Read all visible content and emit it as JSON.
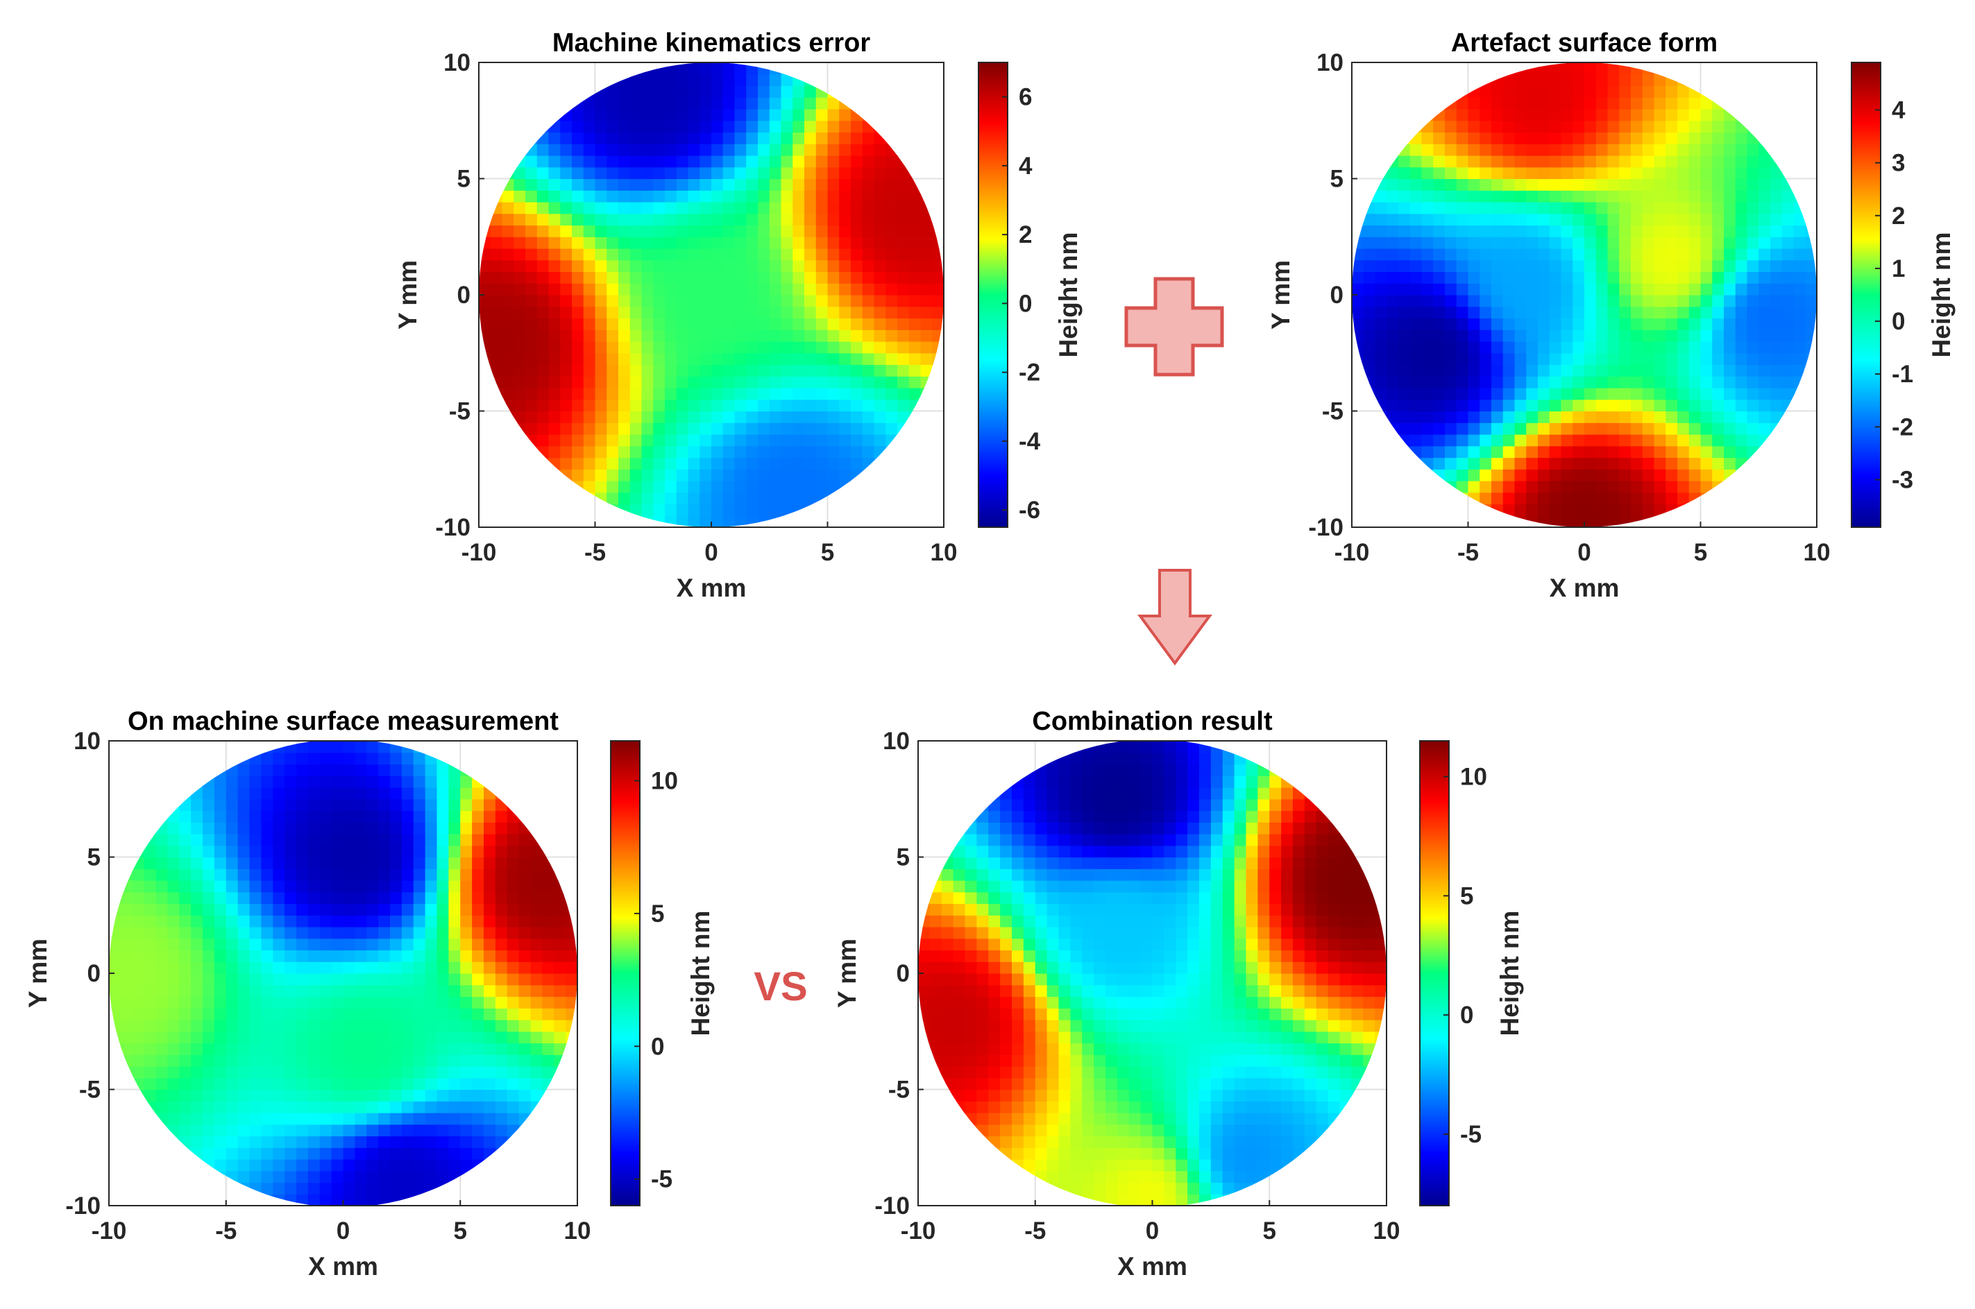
{
  "figure": {
    "plus_symbol": "+",
    "arrow_symbol": "down-arrow",
    "vs_label": "VS"
  },
  "colors": {
    "operator_fill": "#f4b6b3",
    "operator_stroke": "#d9534f",
    "vs_text": "#d9534f",
    "axis": "#262626",
    "grid": "#e0e0e0"
  },
  "chart_data": [
    {
      "id": "kinematics",
      "type": "heatmap",
      "title": "Machine kinematics error",
      "xlabel": "X mm",
      "ylabel": "Y mm",
      "xlim": [
        -10,
        10
      ],
      "ylim": [
        -10,
        10
      ],
      "xticks": [
        -10,
        -5,
        0,
        5,
        10
      ],
      "yticks": [
        -10,
        -5,
        0,
        5,
        10
      ],
      "colorbar": {
        "label": "Height nm",
        "range": [
          -6.5,
          7
        ],
        "ticks": [
          -6,
          -4,
          -2,
          0,
          2,
          4,
          6
        ]
      },
      "domain": "circle radius 10 mm",
      "features": [
        {
          "x": -9,
          "y": -2,
          "value": 6.5
        },
        {
          "x": 8.5,
          "y": 3.5,
          "value": 6.0
        },
        {
          "x": -2.5,
          "y": 8.5,
          "value": -6.0
        },
        {
          "x": 3.5,
          "y": -8.5,
          "value": -3.5
        },
        {
          "x": 0,
          "y": 0,
          "value": 0.5
        }
      ]
    },
    {
      "id": "artefact",
      "type": "heatmap",
      "title": "Artefact surface form",
      "xlabel": "X mm",
      "ylabel": "Y mm",
      "xlim": [
        -10,
        10
      ],
      "ylim": [
        -10,
        10
      ],
      "xticks": [
        -10,
        -5,
        0,
        5,
        10
      ],
      "yticks": [
        -10,
        -5,
        0,
        5,
        10
      ],
      "colorbar": {
        "label": "Height nm",
        "range": [
          -3.9,
          4.9
        ],
        "ticks": [
          -3,
          -2,
          -1,
          0,
          1,
          2,
          3,
          4
        ]
      },
      "domain": "circle radius 10 mm",
      "features": [
        {
          "x": -6.5,
          "y": -2.5,
          "value": -3.8
        },
        {
          "x": 0,
          "y": -9.5,
          "value": 4.8
        },
        {
          "x": -2,
          "y": 8.5,
          "value": 4.0
        },
        {
          "x": 3.8,
          "y": 1.5,
          "value": 1.5
        },
        {
          "x": 8,
          "y": -1,
          "value": -2.0
        },
        {
          "x": -2.5,
          "y": 0.5,
          "value": -1.5
        }
      ]
    },
    {
      "id": "measurement",
      "type": "heatmap",
      "title": "On machine surface measurement",
      "xlabel": "X mm",
      "ylabel": "Y mm",
      "xlim": [
        -10,
        10
      ],
      "ylim": [
        -10,
        10
      ],
      "xticks": [
        -10,
        -5,
        0,
        5,
        10
      ],
      "yticks": [
        -10,
        -5,
        0,
        5,
        10
      ],
      "colorbar": {
        "label": "Height nm",
        "range": [
          -6,
          11.5
        ],
        "ticks": [
          -5,
          0,
          5,
          10
        ]
      },
      "domain": "circle radius 10 mm",
      "features": [
        {
          "x": 0.5,
          "y": 5,
          "value": -5.5
        },
        {
          "x": 8.5,
          "y": 4,
          "value": 11.0
        },
        {
          "x": 2.5,
          "y": -9,
          "value": -5.0
        },
        {
          "x": -9,
          "y": 0,
          "value": 4.0
        },
        {
          "x": 1,
          "y": -3.5,
          "value": 2.5
        }
      ]
    },
    {
      "id": "combination",
      "type": "heatmap",
      "title": "Combination result",
      "xlabel": "X mm",
      "ylabel": "Y mm",
      "xlim": [
        -10,
        10
      ],
      "ylim": [
        -10,
        10
      ],
      "xticks": [
        -10,
        -5,
        0,
        5,
        10
      ],
      "yticks": [
        -10,
        -5,
        0,
        5,
        10
      ],
      "colorbar": {
        "label": "Height nm",
        "range": [
          -8,
          11.5
        ],
        "ticks": [
          -5,
          0,
          5,
          10
        ]
      },
      "domain": "circle radius 10 mm",
      "features": [
        {
          "x": -1.5,
          "y": 7.5,
          "value": -8.0
        },
        {
          "x": 8.5,
          "y": 4,
          "value": 11.5
        },
        {
          "x": -8.5,
          "y": -2,
          "value": 10.0
        },
        {
          "x": 0,
          "y": -9.5,
          "value": 4.0
        },
        {
          "x": 4,
          "y": -8,
          "value": -3.0
        },
        {
          "x": -1.5,
          "y": 2,
          "value": -2.0
        }
      ]
    }
  ]
}
